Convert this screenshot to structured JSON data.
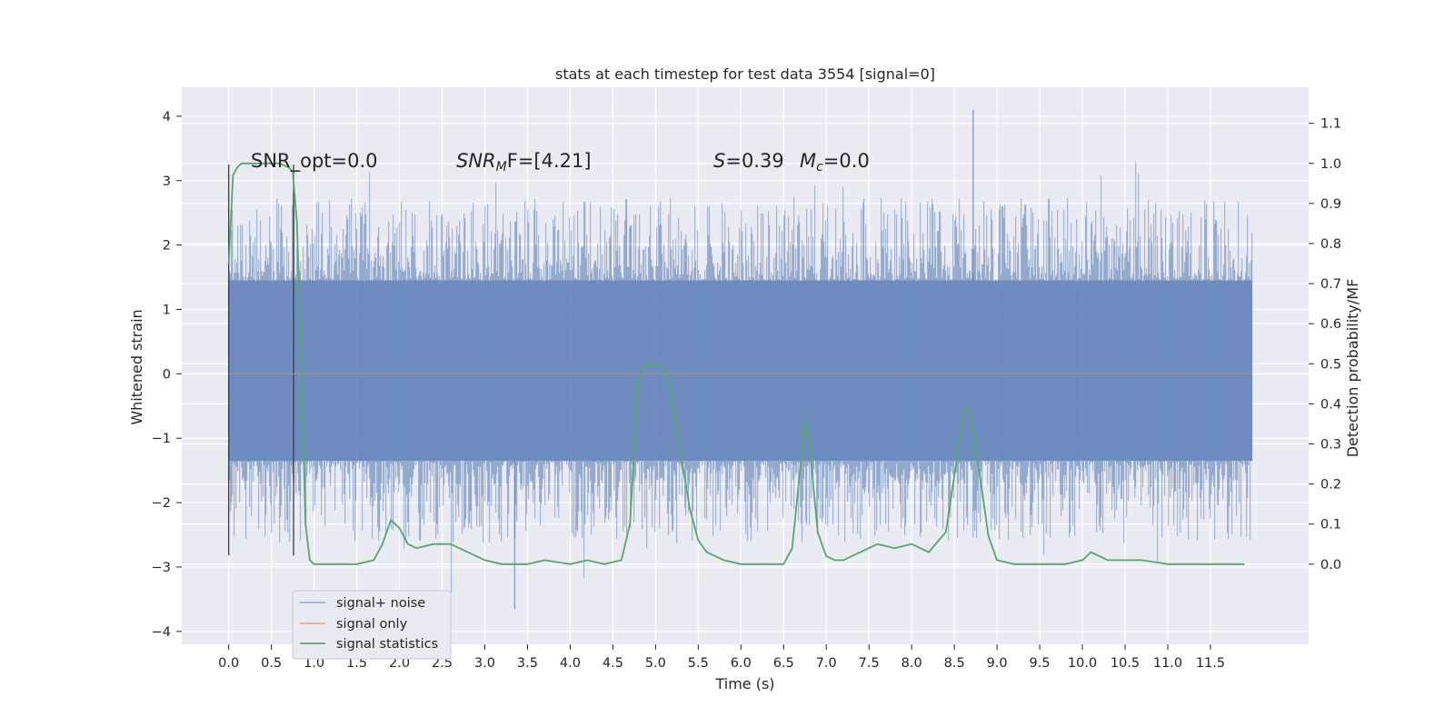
{
  "chart_data": {
    "type": "line",
    "title": "stats at each timestep for test data 3554 [signal=0]",
    "xlabel": "Time (s)",
    "ylabel_left": "Whitened strain",
    "ylabel_right": "Detection probability/MF",
    "xlim": [
      -0.55,
      12.65
    ],
    "ylim_left": [
      -4.2,
      4.45
    ],
    "ylim_right": [
      -0.2,
      1.19
    ],
    "x_ticks": [
      0.0,
      0.5,
      1.0,
      1.5,
      2.0,
      2.5,
      3.0,
      3.5,
      4.0,
      4.5,
      5.0,
      5.5,
      6.0,
      6.5,
      7.0,
      7.5,
      8.0,
      8.5,
      9.0,
      9.5,
      10.0,
      10.5,
      11.0,
      11.5
    ],
    "x_tick_labels": [
      "0.0",
      "0.5",
      "1.0",
      "1.5",
      "2.0",
      "2.5",
      "3.0",
      "3.5",
      "4.0",
      "4.5",
      "5.0",
      "5.5",
      "6.0",
      "6.5",
      "7.0",
      "7.5",
      "8.0",
      "8.5",
      "9.0",
      "9.5",
      "10.0",
      "10.5",
      "11.0",
      "11.5"
    ],
    "y_left_ticks": [
      -4,
      -3,
      -2,
      -1,
      0,
      1,
      2,
      3,
      4
    ],
    "y_left_tick_labels": [
      "−4",
      "−3",
      "−2",
      "−1",
      "0",
      "1",
      "2",
      "3",
      "4"
    ],
    "y_right_ticks": [
      0.0,
      0.1,
      0.2,
      0.3,
      0.4,
      0.5,
      0.6,
      0.7,
      0.8,
      0.9,
      1.0,
      1.1
    ],
    "y_right_tick_labels": [
      "0.0",
      "0.1",
      "0.2",
      "0.3",
      "0.4",
      "0.5",
      "0.6",
      "0.7",
      "0.8",
      "0.9",
      "1.0",
      "1.1"
    ],
    "grid": true,
    "legend_position": "lower-left",
    "annotations": {
      "snr_opt": "SNR_opt=0.0",
      "snr_mf_symbol": "SNR",
      "snr_mf_sub": "M",
      "snr_mf_rest": "F=[4.21]",
      "s_symbol": "S",
      "s_value": "=0.39",
      "mc_symbol": "M",
      "mc_sub": "c",
      "mc_value": "=0.0"
    },
    "vlines": [
      0.0,
      0.76
    ],
    "series": [
      {
        "name": "signal+ noise",
        "axis": "left",
        "color": "#4c72b0",
        "x_range": [
          0.0,
          11.99
        ],
        "envelope": {
          "core_low": -1.35,
          "core_high": 1.45,
          "typical_peak_high": 2.4,
          "typical_peak_low": -2.3,
          "max": 4.1,
          "min": -3.65
        }
      },
      {
        "name": "signal only",
        "axis": "left",
        "color": "#dd8452",
        "x": [
          0.0,
          11.99
        ],
        "y": [
          0.0,
          0.0
        ]
      },
      {
        "name": "signal statistics",
        "axis": "right",
        "color": "#55a868",
        "x": [
          0.0,
          0.05,
          0.1,
          0.15,
          0.2,
          0.3,
          0.4,
          0.5,
          0.6,
          0.7,
          0.75,
          0.8,
          0.85,
          0.9,
          0.95,
          1.0,
          1.2,
          1.5,
          1.7,
          1.8,
          1.9,
          2.0,
          2.1,
          2.2,
          2.4,
          2.5,
          2.6,
          2.8,
          3.0,
          3.2,
          3.5,
          3.7,
          4.0,
          4.2,
          4.4,
          4.6,
          4.7,
          4.8,
          4.85,
          4.9,
          5.0,
          5.1,
          5.2,
          5.3,
          5.4,
          5.5,
          5.6,
          5.8,
          6.0,
          6.3,
          6.5,
          6.6,
          6.7,
          6.75,
          6.8,
          6.85,
          6.9,
          7.0,
          7.1,
          7.2,
          7.4,
          7.6,
          7.8,
          8.0,
          8.2,
          8.4,
          8.5,
          8.6,
          8.65,
          8.7,
          8.8,
          8.9,
          9.0,
          9.2,
          9.5,
          9.8,
          10.0,
          10.1,
          10.2,
          10.3,
          10.5,
          10.7,
          11.0,
          11.3,
          11.6,
          11.9
        ],
        "y": [
          0.75,
          0.97,
          0.99,
          1.0,
          1.0,
          1.0,
          1.0,
          1.0,
          1.0,
          0.99,
          0.98,
          0.85,
          0.5,
          0.1,
          0.01,
          0.0,
          0.0,
          0.0,
          0.01,
          0.05,
          0.11,
          0.09,
          0.05,
          0.04,
          0.05,
          0.05,
          0.05,
          0.03,
          0.01,
          0.0,
          0.0,
          0.01,
          0.0,
          0.01,
          0.0,
          0.01,
          0.1,
          0.46,
          0.49,
          0.5,
          0.5,
          0.49,
          0.41,
          0.27,
          0.14,
          0.06,
          0.03,
          0.01,
          0.0,
          0.0,
          0.0,
          0.04,
          0.25,
          0.36,
          0.31,
          0.19,
          0.08,
          0.02,
          0.01,
          0.01,
          0.03,
          0.05,
          0.04,
          0.05,
          0.03,
          0.08,
          0.22,
          0.37,
          0.39,
          0.36,
          0.22,
          0.07,
          0.01,
          0.0,
          0.0,
          0.0,
          0.01,
          0.03,
          0.02,
          0.01,
          0.01,
          0.01,
          0.0,
          0.0,
          0.0,
          0.0
        ]
      }
    ]
  }
}
